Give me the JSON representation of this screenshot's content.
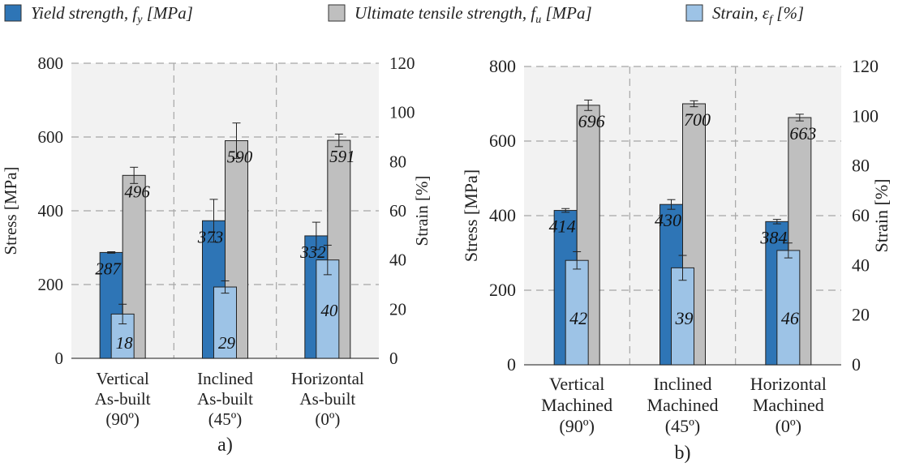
{
  "legend": [
    {
      "label": "Yield strength, f",
      "sub": "y",
      "unit": " [MPa]",
      "color": "#2E75B6"
    },
    {
      "label": "Ultimate tensile strength, f",
      "sub": "u",
      "unit": " [MPa]",
      "color": "#BFBFBF"
    },
    {
      "label": "Strain, ε",
      "sub": "f",
      "unit": " [%]",
      "color": "#9DC3E6"
    }
  ],
  "colors": {
    "yield": "#2E75B6",
    "uts": "#BFBFBF",
    "strain": "#9DC3E6",
    "plot_background": "#F2F2F2",
    "grid": "#A6A6A6"
  },
  "chart_data": [
    {
      "type": "bar",
      "label": "a)",
      "categories": [
        "Vertical As-built (90º)",
        "Inclined As-built (45º)",
        "Horizontal As-built (0º)"
      ],
      "category_lines": [
        [
          "Vertical",
          "As-built",
          "(90º)"
        ],
        [
          "Inclined",
          "As-built",
          "(45º)"
        ],
        [
          "Horizontal",
          "As-built",
          "(0º)"
        ]
      ],
      "ylabel": "Stress [MPa]",
      "y2label": "Strain [%]",
      "ylim": [
        0,
        800
      ],
      "y2lim": [
        0,
        120
      ],
      "yticks": [
        0,
        200,
        400,
        600,
        800
      ],
      "y2ticks": [
        0,
        20,
        40,
        60,
        80,
        100,
        120
      ],
      "grid": true,
      "series": [
        {
          "name": "Yield strength, fy [MPa]",
          "axis": "left",
          "values": [
            287,
            373,
            332
          ],
          "errors": [
            2,
            58,
            37
          ],
          "labels": [
            "287",
            "373",
            "332"
          ]
        },
        {
          "name": "Ultimate tensile strength, fu [MPa]",
          "axis": "left",
          "values": [
            496,
            590,
            591
          ],
          "errors": [
            22,
            48,
            17
          ],
          "labels": [
            "496",
            "590",
            "591"
          ]
        },
        {
          "name": "Strain, εf [%]",
          "axis": "right",
          "values": [
            18,
            29,
            40
          ],
          "errors": [
            4,
            2.5,
            6
          ],
          "labels": [
            "18",
            "29",
            "40"
          ]
        }
      ]
    },
    {
      "type": "bar",
      "label": "b)",
      "categories": [
        "Vertical Machined (90º)",
        "Inclined Machined (45º)",
        "Horizontal Machined (0º)"
      ],
      "category_lines": [
        [
          "Vertical",
          "Machined",
          "(90º)"
        ],
        [
          "Inclined",
          "Machined",
          "(45º)"
        ],
        [
          "Horizontal",
          "Machined",
          "(0º)"
        ]
      ],
      "ylabel": "Stress [MPa]",
      "y2label": "Strain [%]",
      "ylim": [
        0,
        800
      ],
      "y2lim": [
        0,
        120
      ],
      "yticks": [
        0,
        200,
        400,
        600,
        800
      ],
      "y2ticks": [
        0,
        20,
        40,
        60,
        80,
        100,
        120
      ],
      "grid": true,
      "series": [
        {
          "name": "Yield strength, fy [MPa]",
          "axis": "left",
          "values": [
            414,
            430,
            384
          ],
          "errors": [
            5,
            13,
            6
          ],
          "labels": [
            "414",
            "430",
            "384"
          ]
        },
        {
          "name": "Ultimate tensile strength, fu [MPa]",
          "axis": "left",
          "values": [
            696,
            700,
            663
          ],
          "errors": [
            14,
            8,
            9
          ],
          "labels": [
            "696",
            "700",
            "663"
          ]
        },
        {
          "name": "Strain, εf [%]",
          "axis": "right",
          "values": [
            42,
            39,
            46
          ],
          "errors": [
            3.5,
            5,
            3
          ],
          "labels": [
            "42",
            "39",
            "46"
          ]
        }
      ]
    }
  ]
}
